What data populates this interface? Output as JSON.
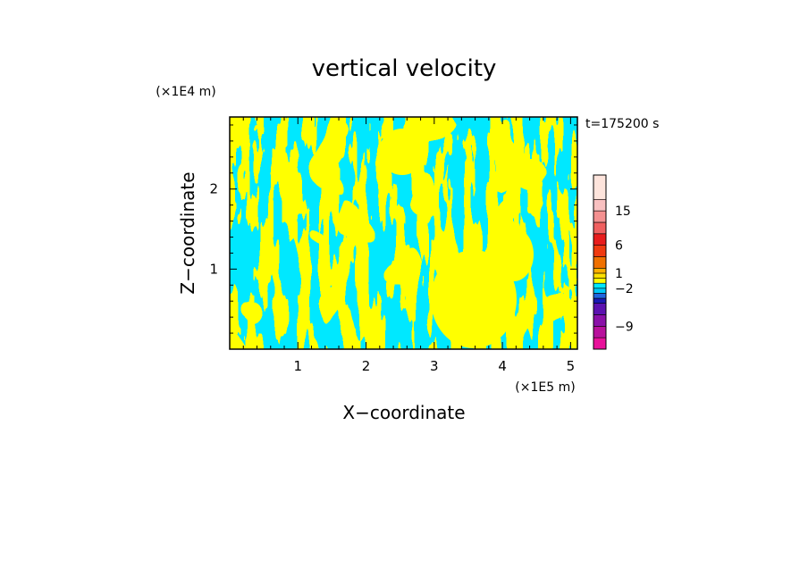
{
  "chart_data": {
    "type": "heatmap",
    "title": "vertical velocity",
    "xlabel": "X−coordinate",
    "ylabel": "Z−coordinate",
    "x_unit": "(×1E5 m)",
    "y_unit": "(×1E4 m)",
    "time_label": "t=175200 s",
    "xlim": [
      0,
      5.1
    ],
    "ylim": [
      0,
      2.9
    ],
    "x_ticks": [
      1,
      2,
      3,
      4,
      5
    ],
    "y_ticks": [
      1,
      2
    ],
    "colorbar": {
      "levels": [
        {
          "color": "#e8119a"
        },
        {
          "color": "#b8109c"
        },
        {
          "color": "#8a10a8"
        },
        {
          "color": "#5c12b0"
        },
        {
          "color": "#1a1ab4"
        },
        {
          "color": "#2066e0"
        },
        {
          "color": "#00c8f8"
        },
        {
          "color": "#00e8ff"
        },
        {
          "color": "#ffff00"
        },
        {
          "color": "#ffe000"
        },
        {
          "color": "#ffb000"
        },
        {
          "color": "#f07000"
        },
        {
          "color": "#f03a10"
        },
        {
          "color": "#e81c1c"
        },
        {
          "color": "#f06060"
        },
        {
          "color": "#f49090"
        },
        {
          "color": "#f8c0c0"
        },
        {
          "color": "#fde4dc"
        }
      ],
      "tick_labels": [
        "−9",
        "−2",
        "1",
        "6",
        "15"
      ]
    },
    "dominant_colors": {
      "positive": "#ffff00",
      "negative": "#00e8ff"
    }
  }
}
